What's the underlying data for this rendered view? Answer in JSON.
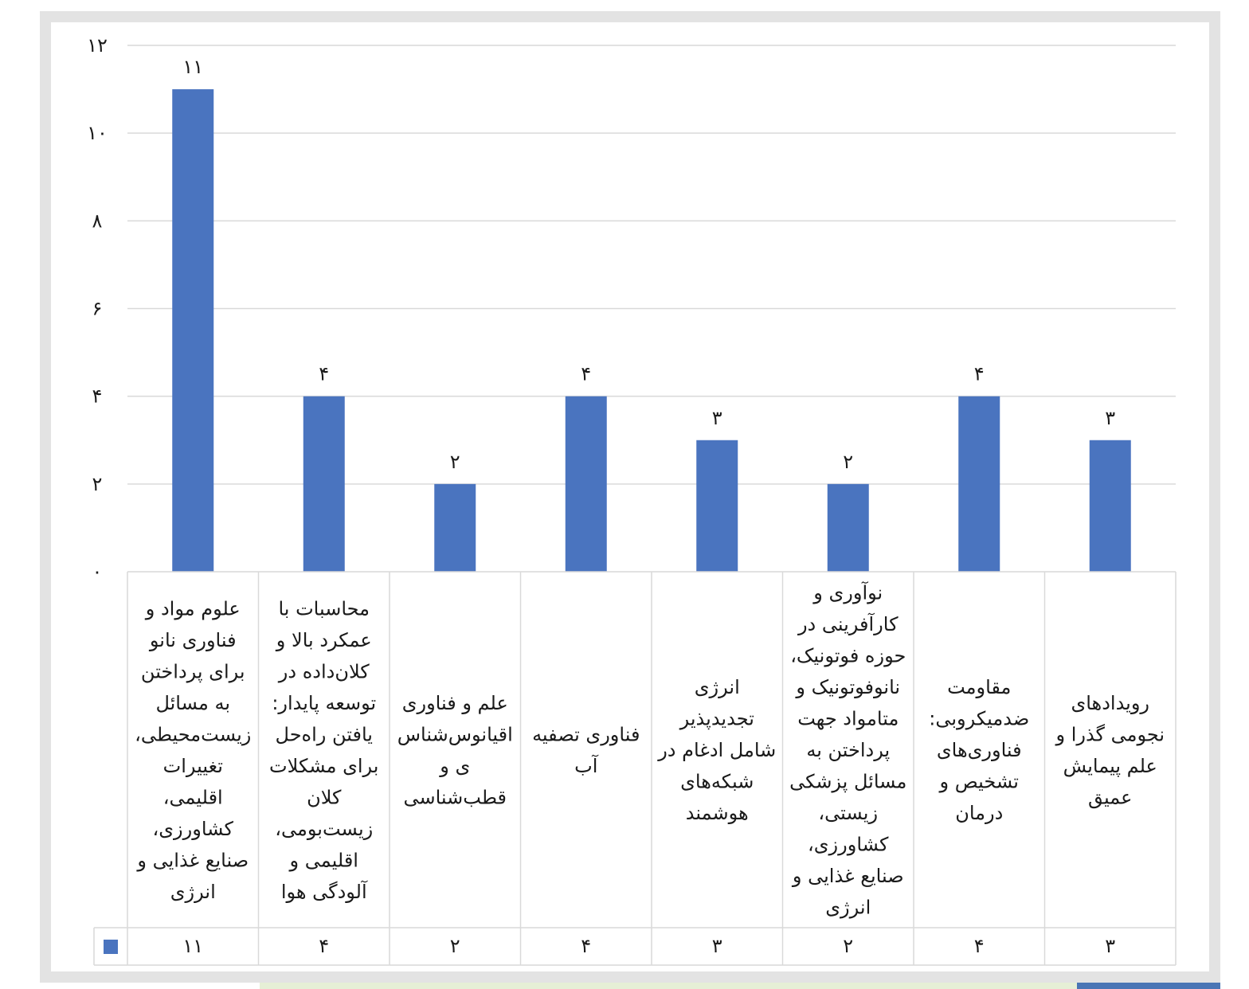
{
  "chart_data": {
    "type": "bar",
    "categories": [
      "رویدادهای نجومی گذرا و علم پیمایش عمیق",
      "مقاومت ضدمیکروبی: فناوری‌های تشخیص و درمان",
      "نوآوری و کارآفرینی در حوزه فوتونیک، نانوفوتونیک و متامواد جهت پرداختن به مسائل پزشکی، زیستی، کشاورزی، صنایع غذایی و انرژی",
      "انرژی تجدیدپذیر شامل ادغام در شبکه‌های هوشمند",
      "فناوری تصفیه آب",
      "علم و فناوری اقیانوس‌شناسی و قطب‌شناسی",
      "محاسبات با عمکرد بالا و کلان‌داده در توسعه پایدار: یافتن راه‌حل برای مشکلات کلان زیست‌بومی، اقلیمی و آلودگی هوا",
      "علوم مواد و فناوری نانو برای پرداختن به مسائل زیست‌محیطی، تغییرات اقلیمی، کشاورزی، صنایع غذایی و انرژی"
    ],
    "category_lines": [
      [
        "رویدادهای",
        "نجومی گذرا و",
        "علم پیمایش",
        "عمیق"
      ],
      [
        "مقاومت",
        "ضدمیکروبی:",
        "فناوری‌های",
        "تشخیص و",
        "درمان"
      ],
      [
        "نوآوری و",
        "کارآفرینی در",
        "حوزه فوتونیک،",
        "نانوفوتونیک و",
        "متامواد جهت",
        "پرداختن به",
        "مسائل پزشکی",
        "زیستی،",
        "کشاورزی،",
        "صنایع غذایی و",
        "انرژی"
      ],
      [
        "انرژی",
        "تجدیدپذیر",
        "شامل ادغام در",
        "شبکه‌های",
        "هوشمند"
      ],
      [
        "فناوری تصفیه",
        "آب"
      ],
      [
        "علم و فناوری",
        "اقیانوس‌شناس",
        "ی و",
        "قطب‌شناسی"
      ],
      [
        "محاسبات با",
        "عمکرد بالا و",
        "کلان‌داده در",
        "توسعه پایدار:",
        "یافتن راه‌حل",
        "برای مشکلات",
        "کلان",
        "زیست‌بومی،",
        "اقلیمی و",
        "آلودگی هوا"
      ],
      [
        "علوم مواد و",
        "فناوری نانو",
        "برای پرداختن",
        "به مسائل",
        "زیست‌محیطی،",
        "تغییرات",
        "اقلیمی،",
        "کشاورزی،",
        "صنایع غذایی و",
        "انرژی"
      ]
    ],
    "values": [
      3,
      4,
      2,
      3,
      4,
      2,
      4,
      11
    ],
    "data_labels": [
      "۳",
      "۴",
      "۲",
      "۳",
      "۴",
      "۲",
      "۴",
      "۱۱"
    ],
    "ylim": [
      0,
      12
    ],
    "yticks": [
      0,
      2,
      4,
      6,
      8,
      10,
      12
    ],
    "ytick_labels": [
      "۰",
      "۲",
      "۴",
      "۶",
      "۸",
      "۱۰",
      "۱۲"
    ],
    "grid": true,
    "data_table": true,
    "title": "",
    "xlabel": "",
    "ylabel": "",
    "colors": {
      "bar": "#4a74bf",
      "grid": "#d9d9d9",
      "table_border": "#d9d9d9"
    }
  }
}
